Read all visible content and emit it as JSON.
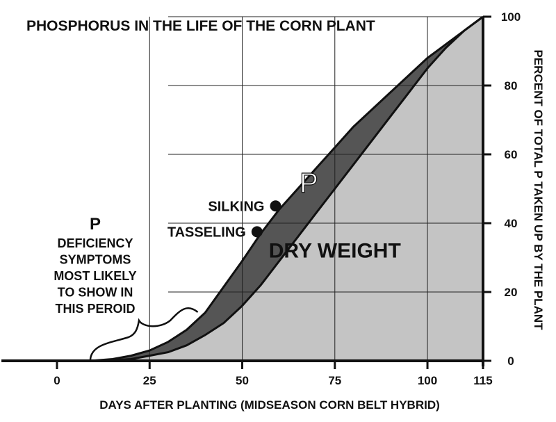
{
  "chart_data": {
    "type": "area",
    "title": "PHOSPHORUS IN THE LIFE OF THE CORN PLANT",
    "xlabel": "DAYS AFTER PLANTING (MIDSEASON CORN BELT HYBRID)",
    "ylabel": "PERCENT OF TOTAL P TAKEN UP BY THE PLANT",
    "xlim": [
      -15,
      115
    ],
    "ylim": [
      0,
      100
    ],
    "x_ticks": [
      0,
      25,
      50,
      75,
      100,
      115
    ],
    "y_ticks": [
      0,
      20,
      40,
      60,
      80,
      100
    ],
    "grid": true,
    "series": [
      {
        "name": "P",
        "color": "#555555",
        "x": [
          9,
          15,
          20,
          25,
          30,
          35,
          40,
          44,
          50,
          55,
          60,
          65,
          70,
          75,
          80,
          85,
          90,
          95,
          100,
          105,
          110,
          115
        ],
        "y": [
          0,
          0.5,
          1.5,
          3,
          5.5,
          9,
          14,
          20,
          29,
          37,
          44,
          50,
          56,
          62,
          68,
          73,
          78,
          83,
          88,
          92,
          96,
          100
        ]
      },
      {
        "name": "DRY WEIGHT",
        "color": "#c4c4c4",
        "x": [
          12,
          20,
          25,
          30,
          35,
          40,
          45,
          50,
          55,
          60,
          65,
          70,
          75,
          80,
          85,
          90,
          95,
          100,
          105,
          110,
          115
        ],
        "y": [
          0,
          0.5,
          1.5,
          2.5,
          4.5,
          7.5,
          11,
          16,
          22,
          29,
          36,
          43,
          50,
          57,
          64,
          71,
          78,
          85,
          91,
          96,
          100
        ]
      }
    ],
    "points": [
      {
        "label": "TASSELING",
        "x": 54,
        "y": 37.5
      },
      {
        "label": "SILKING",
        "x": 59,
        "y": 45
      }
    ],
    "annotations": [
      {
        "text": "P",
        "x": 68,
        "y": 49
      },
      {
        "text": "DRY WEIGHT",
        "x": 75,
        "y": 30
      }
    ],
    "deficiency_note": {
      "lines": [
        "P",
        "DEFICIENCY",
        "SYMPTOMS",
        "MOST LIKELY",
        "TO SHOW IN",
        "THIS PEROID"
      ],
      "range": [
        9,
        38
      ]
    }
  }
}
